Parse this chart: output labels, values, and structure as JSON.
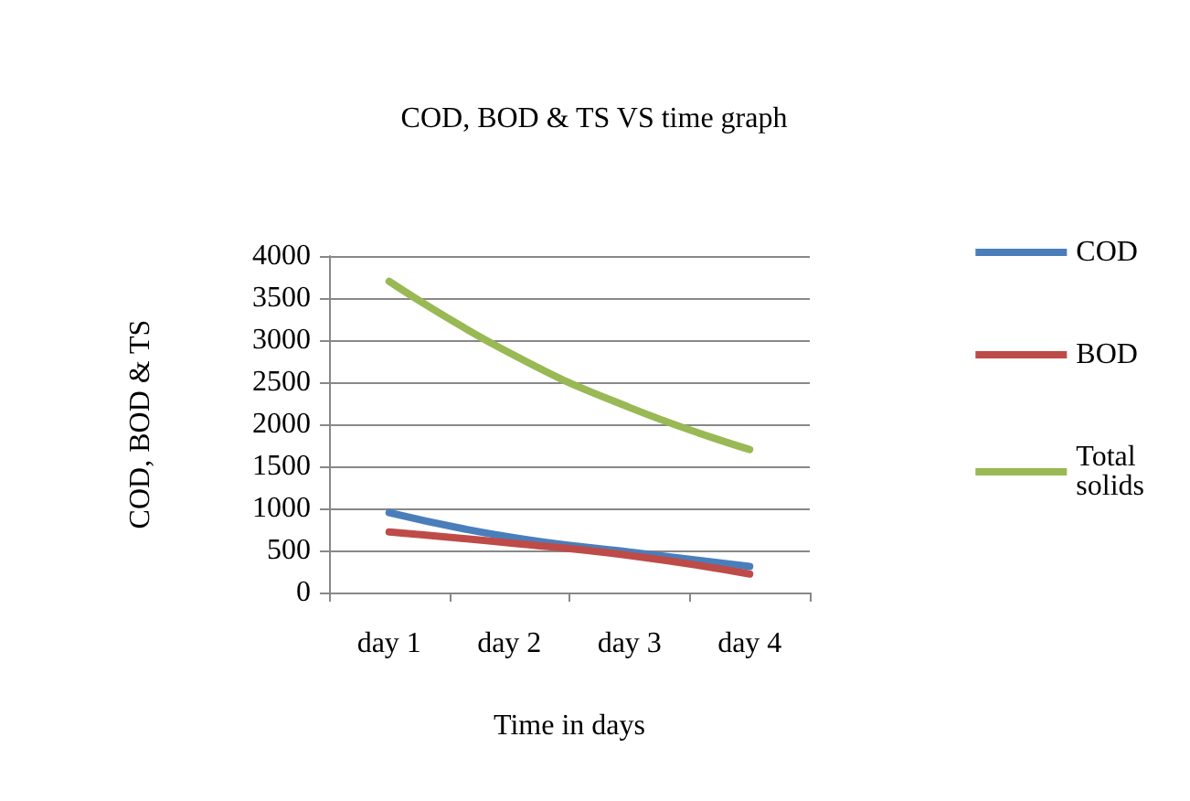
{
  "chart_data": {
    "type": "line",
    "title": "COD, BOD & TS VS time graph",
    "xlabel": "Time in days",
    "ylabel": "COD, BOD & TS",
    "categories": [
      "day 1",
      "day 2",
      "day 3",
      "day 4"
    ],
    "series": [
      {
        "name": "COD",
        "color": "#4a7ebb",
        "values": [
          950,
          660,
          480,
          310
        ]
      },
      {
        "name": "BOD",
        "color": "#be4b48",
        "values": [
          720,
          590,
          440,
          220
        ]
      },
      {
        "name": "Total solids",
        "color": "#98b954",
        "values": [
          3700,
          2850,
          2200,
          1700
        ]
      }
    ],
    "ylim": [
      0,
      4000
    ],
    "yticks": [
      0,
      500,
      1000,
      1500,
      2000,
      2500,
      3000,
      3500,
      4000
    ],
    "grid": "y",
    "legend": "right",
    "marker": "none",
    "line_style": "solid"
  }
}
